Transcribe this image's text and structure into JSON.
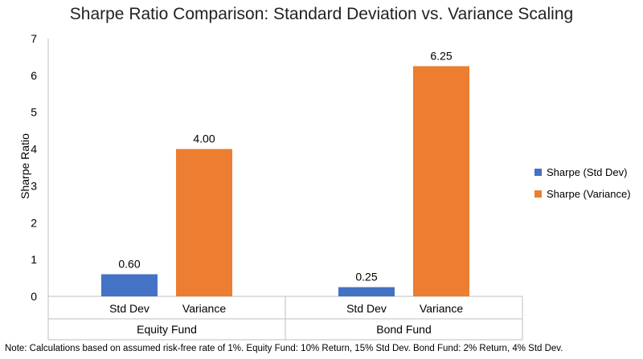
{
  "chart_data": {
    "type": "bar",
    "title": "Sharpe Ratio Comparison: Standard Deviation vs. Variance Scaling",
    "xlabel": "",
    "ylabel": "Sharpe Ratio",
    "ylim": [
      0,
      7
    ],
    "yticks": [
      "0",
      "1",
      "2",
      "3",
      "4",
      "5",
      "6",
      "7"
    ],
    "grid": false,
    "legend_position": "right",
    "groups": [
      {
        "name": "Equity Fund",
        "bars": [
          {
            "category": "Std Dev",
            "series": "Sharpe (Std Dev)",
            "value": 0.6,
            "label": "0.60"
          },
          {
            "category": "Variance",
            "series": "Sharpe (Variance)",
            "value": 4.0,
            "label": "4.00"
          }
        ]
      },
      {
        "name": "Bond Fund",
        "bars": [
          {
            "category": "Std Dev",
            "series": "Sharpe (Std Dev)",
            "value": 0.25,
            "label": "0.25"
          },
          {
            "category": "Variance",
            "series": "Sharpe (Variance)",
            "value": 6.25,
            "label": "6.25"
          }
        ]
      }
    ],
    "series": [
      {
        "name": "Sharpe (Std Dev)",
        "color": "#4472c4"
      },
      {
        "name": "Sharpe (Variance)",
        "color": "#ed7d31"
      }
    ]
  },
  "note": "Note: Calculations based on assumed risk-free rate of 1%. Equity Fund: 10% Return, 15% Std Dev. Bond Fund: 2% Return, 4% Std Dev."
}
